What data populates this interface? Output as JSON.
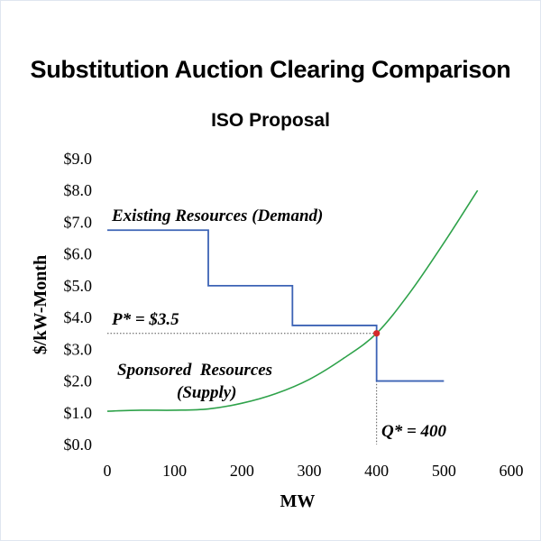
{
  "chart_data": {
    "type": "line",
    "title": "Substitution Auction Clearing Comparison",
    "subtitle": "ISO Proposal",
    "xlabel": "MW",
    "ylabel": "$/kW-Month",
    "xlim": [
      0,
      600
    ],
    "ylim": [
      0,
      9
    ],
    "x_ticks": [
      "0",
      "100",
      "200",
      "300",
      "400",
      "500",
      "600"
    ],
    "y_ticks": [
      "$0.0",
      "$1.0",
      "$2.0",
      "$3.0",
      "$4.0",
      "$5.0",
      "$6.0",
      "$7.0",
      "$8.0",
      "$9.0"
    ],
    "grid": false,
    "series": [
      {
        "name": "Existing Resources (Demand)",
        "style": "step",
        "color": "#3c63b5",
        "x": [
          0,
          150,
          150,
          275,
          275,
          400,
          400,
          500
        ],
        "y": [
          6.75,
          6.75,
          5.0,
          5.0,
          3.75,
          3.75,
          2.0,
          2.0
        ]
      },
      {
        "name": "Sponsored Resources (Supply)",
        "style": "curve",
        "color": "#2ea24a",
        "x": [
          0,
          50,
          100,
          150,
          200,
          250,
          300,
          350,
          400,
          450,
          500,
          550
        ],
        "y": [
          1.05,
          1.08,
          1.08,
          1.12,
          1.3,
          1.6,
          2.05,
          2.7,
          3.5,
          4.8,
          6.35,
          8.0
        ]
      }
    ],
    "annotations": {
      "demand_label": "Existing Resources (Demand)",
      "supply_label_line1": "Sponsored  Resources",
      "supply_label_line2": "(Supply)",
      "price_label": "P* = $3.5",
      "quantity_label": "Q* = 400"
    },
    "clearing_point": {
      "x": 400,
      "y": 3.5,
      "color": "#d42a2a"
    }
  }
}
